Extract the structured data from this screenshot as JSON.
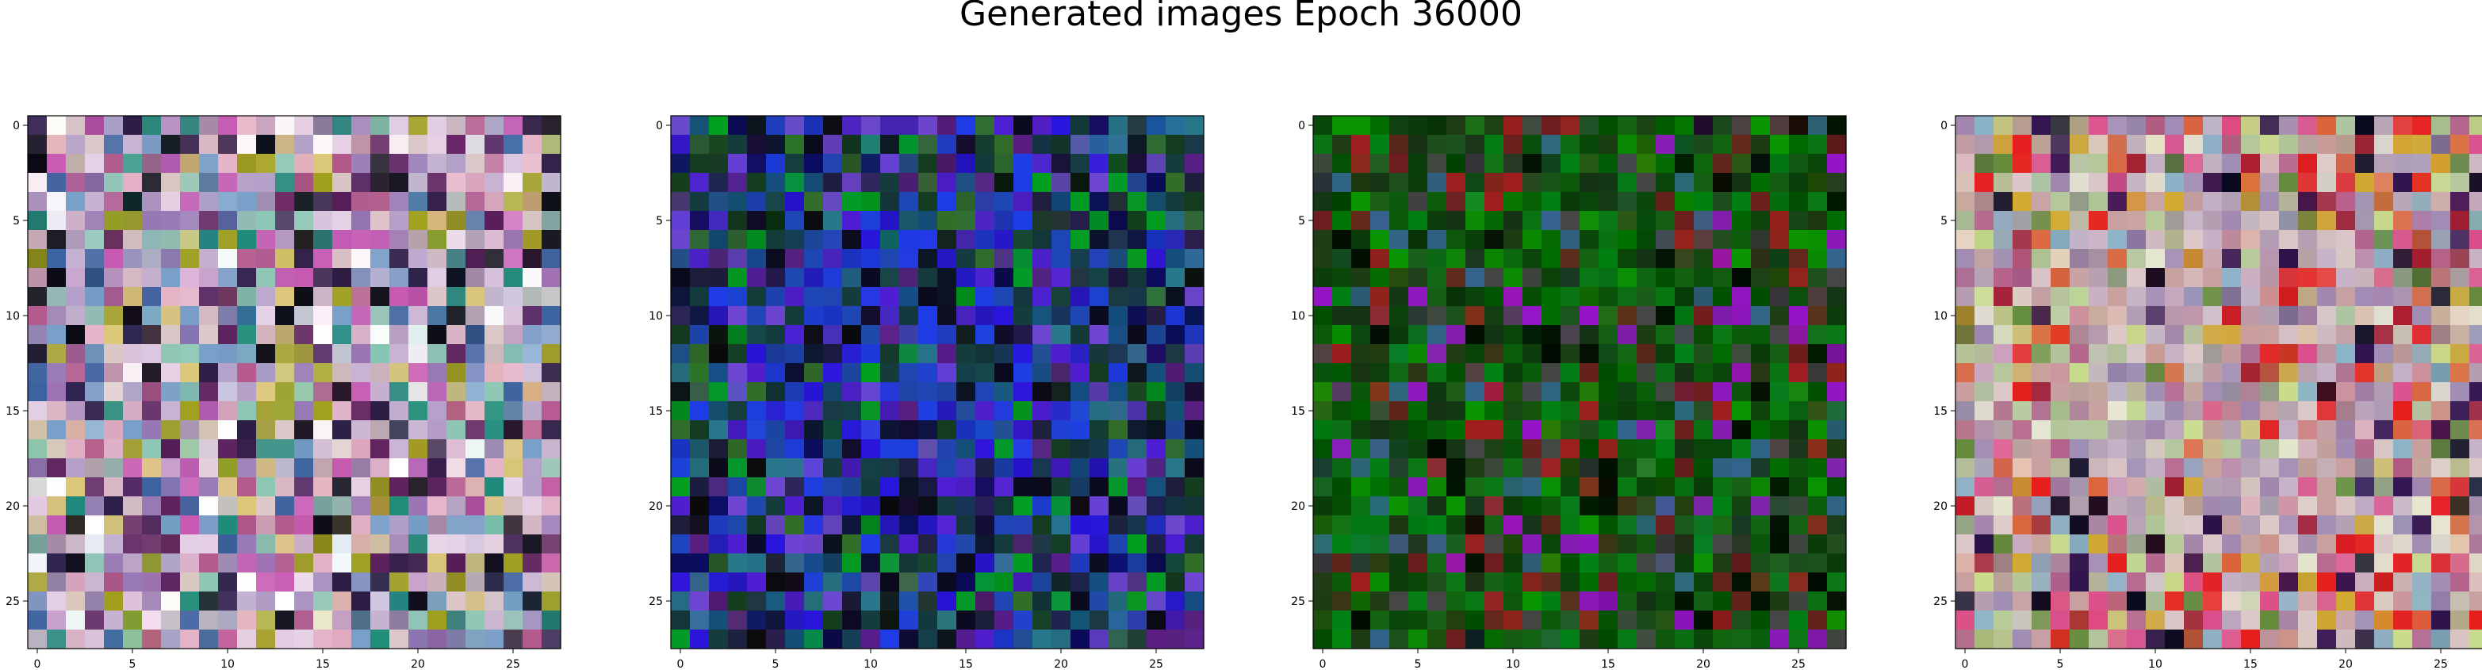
{
  "title": "Generated images Epoch 36000",
  "grid_size": 28,
  "axis_ticks": {
    "y": [
      "0",
      "5",
      "10",
      "15",
      "20",
      "25"
    ],
    "x": [
      "0",
      "5",
      "10",
      "15",
      "20",
      "25"
    ]
  },
  "panels": [
    {
      "palette": [
        "#c8b4d2",
        "#b4a0c8",
        "#e6d2e6",
        "#9678b4",
        "#dcc8c8",
        "#8cc8b4",
        "#ffffff",
        "#78a0c8",
        "#c85ab4",
        "#3c64a0",
        "#a0a01e",
        "#e6b4c8",
        "#2d1e46",
        "#5a1e5a",
        "#dcc878",
        "#1e8c78",
        "#b45a8c",
        "#0a0a14"
      ]
    },
    {
      "palette": [
        "#1e46b4",
        "#2814dc",
        "#1e3ce6",
        "#501ed2",
        "#0a0a1e",
        "#143c3c",
        "#0a0a5a",
        "#326e28",
        "#14507a",
        "#6e46d2",
        "#1e1e3c",
        "#0a0a0a",
        "#28788c",
        "#5a1e82",
        "#143c1e",
        "#00a01e"
      ]
    },
    {
      "palette": [
        "#0a460a",
        "#146414",
        "#0a5a0a",
        "#0a7814",
        "#1e3c14",
        "#005000",
        "#006e00",
        "#0a3c0a",
        "#008214",
        "#143214",
        "#1e501e",
        "#000a00",
        "#0a9600",
        "#464646",
        "#a01e1e",
        "#6e1e1e",
        "#32648c",
        "#9614c8"
      ]
    },
    {
      "palette": [
        "#c8b4c8",
        "#b4a0b4",
        "#dcc8c8",
        "#b4c89c",
        "#c8a0a0",
        "#a08cb4",
        "#dc508c",
        "#c8dc8c",
        "#dc643c",
        "#a01e32",
        "#e61e1e",
        "#d2aa32",
        "#648c3c",
        "#321450",
        "#0a0a1e",
        "#8cb4c8",
        "#e6e6d2",
        "#b4648c"
      ]
    }
  ]
}
